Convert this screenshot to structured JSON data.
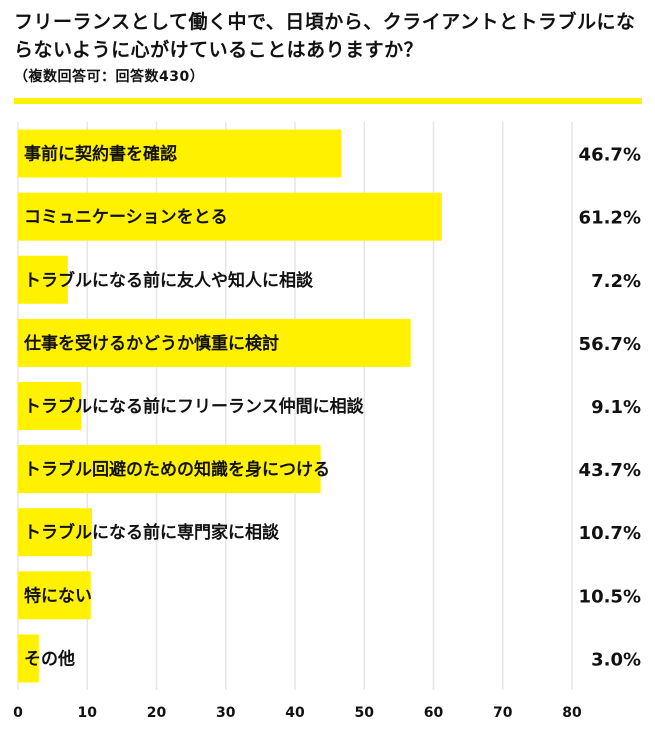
{
  "title": "フリーランスとして働く中で、日頃から、クライアントとトラブルにならないように心がけていることはありますか？",
  "subtitle": "（複数回答可：回答数430）",
  "colors": {
    "bar": "#FFF100",
    "grid": "#e6e6e6",
    "text": "#111111"
  },
  "chart_data": {
    "type": "bar",
    "orientation": "horizontal",
    "categories": [
      "事前に契約書を確認",
      "コミュニケーションをとる",
      "トラブルになる前に友人や知人に相談",
      "仕事を受けるかどうか慎重に検討",
      "トラブルになる前にフリーランス仲間に相談",
      "トラブル回避のための知識を身につける",
      "トラブルになる前に専門家に相談",
      "特にない",
      "その他"
    ],
    "values": [
      46.7,
      61.2,
      7.2,
      56.7,
      9.1,
      43.7,
      10.7,
      10.5,
      3.0
    ],
    "value_labels": [
      "46.7%",
      "61.2%",
      "7.2%",
      "56.7%",
      "9.1%",
      "43.7%",
      "10.7%",
      "10.5%",
      "3.0%"
    ],
    "xlim": [
      0,
      80
    ],
    "xticks": [
      "0",
      "10",
      "20",
      "30",
      "40",
      "50",
      "60",
      "70",
      "80"
    ],
    "grid": true
  }
}
